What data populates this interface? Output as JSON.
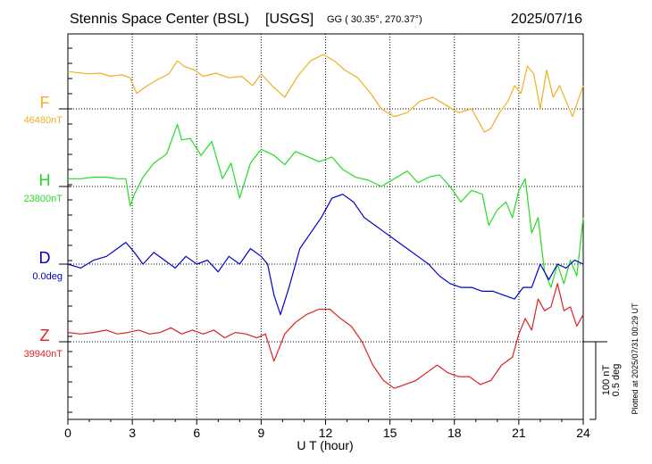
{
  "header": {
    "station": "Stennis Space Center (BSL)",
    "network": "[USGS]",
    "coords": "GG ( 30.35°, 270.37°)",
    "date": "2025/07/16"
  },
  "side_note": "Plotted at 2025/07/31 00:29 UT",
  "chart_data": {
    "type": "line",
    "title": "Stennis Space Center (BSL)  [USGS]",
    "xlabel": "U T (hour)",
    "xlim": [
      0,
      24
    ],
    "xticks": [
      0,
      3,
      6,
      9,
      12,
      15,
      18,
      21,
      24
    ],
    "xtick_labels": [
      "0",
      "3",
      "6",
      "9",
      "12",
      "15",
      "18",
      "21",
      "24"
    ],
    "vertical_grid": "dotted, every 3 hours",
    "scale_bar": {
      "line1": "100 nT",
      "line2": "0.5 deg"
    },
    "series": [
      {
        "name": "F",
        "baseline_label": "46480nT",
        "color": "#f0b020",
        "x": [
          0,
          1,
          1.5,
          2,
          2.5,
          2.9,
          3.2,
          3.7,
          4.2,
          4.7,
          5.1,
          5.4,
          5.9,
          6.3,
          6.9,
          7.5,
          8.1,
          8.6,
          9,
          9.5,
          10.1,
          10.7,
          11.3,
          11.9,
          12.4,
          12.9,
          13.5,
          14.1,
          14.6,
          15.2,
          15.8,
          16.4,
          17,
          17.6,
          18.2,
          18.8,
          19.4,
          19.7,
          20.1,
          20.5,
          20.8,
          21.1,
          21.4,
          21.7,
          22,
          22.3,
          22.6,
          22.9,
          23.2,
          23.5,
          24
        ],
        "y": [
          48,
          45,
          46,
          42,
          44,
          40,
          20,
          30,
          38,
          45,
          62,
          55,
          50,
          42,
          46,
          40,
          42,
          30,
          45,
          30,
          15,
          42,
          62,
          70,
          62,
          50,
          40,
          20,
          0,
          -10,
          -5,
          10,
          15,
          5,
          -5,
          0,
          -30,
          -25,
          -5,
          10,
          30,
          20,
          55,
          45,
          0,
          50,
          15,
          30,
          10,
          -10,
          30
        ]
      },
      {
        "name": "H",
        "baseline_label": "23800nT",
        "color": "#22dd22",
        "x": [
          0,
          0.6,
          1.2,
          1.8,
          2.3,
          2.7,
          2.9,
          3.1,
          3.5,
          4,
          4.6,
          5.1,
          5.3,
          5.7,
          6.2,
          6.7,
          7.2,
          7.6,
          8,
          8.5,
          9,
          9.6,
          10.1,
          10.6,
          11.2,
          11.7,
          12.3,
          12.8,
          13.4,
          14,
          14.6,
          15.2,
          15.8,
          16.3,
          16.8,
          17.3,
          17.8,
          18.3,
          18.8,
          19.3,
          19.6,
          20,
          20.4,
          20.7,
          21,
          21.3,
          21.6,
          21.9,
          22.2,
          22.5,
          22.8,
          23.1,
          23.4,
          23.7,
          24
        ],
        "y": [
          10,
          10,
          12,
          12,
          10,
          10,
          -25,
          -10,
          12,
          30,
          42,
          80,
          60,
          62,
          40,
          58,
          10,
          30,
          -15,
          30,
          48,
          40,
          28,
          45,
          38,
          32,
          38,
          22,
          12,
          8,
          0,
          10,
          20,
          5,
          12,
          15,
          0,
          -20,
          -5,
          -10,
          -50,
          -30,
          -20,
          -40,
          -5,
          10,
          -60,
          -40,
          -110,
          -130,
          -100,
          -125,
          -95,
          -115,
          -40
        ]
      },
      {
        "name": "D",
        "baseline_label": "0.0deg",
        "color": "#0000cc",
        "x": [
          0,
          0.6,
          1.2,
          1.8,
          2.3,
          2.7,
          3.1,
          3.5,
          4,
          4.5,
          5,
          5.5,
          6,
          6.5,
          7,
          7.5,
          8,
          8.5,
          9,
          9.3,
          9.6,
          9.9,
          10.3,
          10.8,
          11.3,
          11.8,
          12.3,
          12.8,
          13.3,
          13.8,
          14.3,
          14.8,
          15.3,
          15.8,
          16.3,
          16.8,
          17.3,
          17.8,
          18.3,
          18.8,
          19.3,
          19.8,
          20.3,
          20.8,
          21.2,
          21.6,
          22,
          22.4,
          22.8,
          23.2,
          23.6,
          24
        ],
        "y": [
          0,
          -5,
          5,
          10,
          20,
          28,
          15,
          0,
          15,
          5,
          -5,
          10,
          0,
          5,
          -10,
          10,
          0,
          20,
          10,
          0,
          -40,
          -65,
          -30,
          20,
          40,
          60,
          85,
          90,
          80,
          60,
          50,
          40,
          30,
          20,
          10,
          0,
          -15,
          -25,
          -30,
          -30,
          -35,
          -35,
          -40,
          -45,
          -30,
          -30,
          0,
          -20,
          0,
          -5,
          5,
          0
        ]
      },
      {
        "name": "Z",
        "baseline_label": "39940nT",
        "color": "#dd2222",
        "x": [
          0,
          0.6,
          1.2,
          1.8,
          2.3,
          2.8,
          3.3,
          3.8,
          4.3,
          4.8,
          5.3,
          5.8,
          6.3,
          6.8,
          7.3,
          7.8,
          8.3,
          8.8,
          9.2,
          9.6,
          10.1,
          10.6,
          11.1,
          11.7,
          12.2,
          12.7,
          13.2,
          13.7,
          14.2,
          14.7,
          15.2,
          15.7,
          16.2,
          16.7,
          17.2,
          17.7,
          18.2,
          18.7,
          19.2,
          19.7,
          20.2,
          20.7,
          21,
          21.3,
          21.6,
          21.9,
          22.2,
          22.5,
          22.8,
          23.1,
          23.4,
          23.7,
          24
        ],
        "y": [
          12,
          10,
          12,
          15,
          10,
          12,
          15,
          10,
          12,
          18,
          10,
          15,
          10,
          15,
          5,
          12,
          10,
          5,
          10,
          -25,
          10,
          25,
          35,
          42,
          42,
          30,
          20,
          0,
          -30,
          -50,
          -60,
          -55,
          -50,
          -40,
          -30,
          -40,
          -45,
          -45,
          -55,
          -50,
          -30,
          -20,
          10,
          30,
          15,
          55,
          40,
          45,
          75,
          40,
          45,
          20,
          35
        ]
      }
    ]
  }
}
